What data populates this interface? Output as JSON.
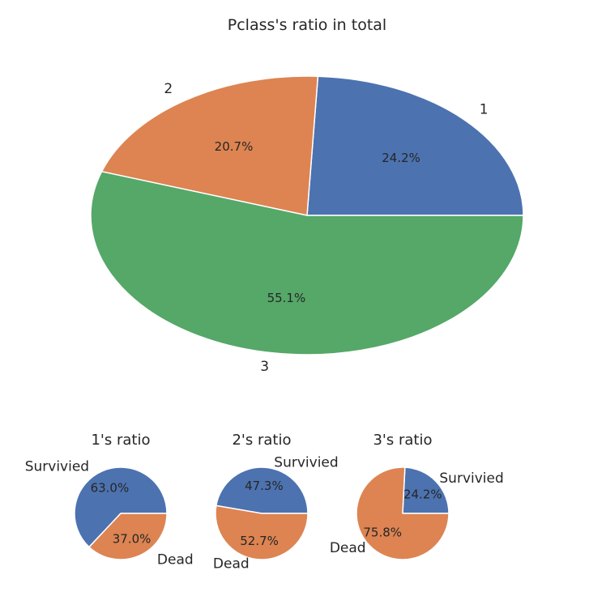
{
  "chart_data": [
    {
      "type": "pie",
      "title": "Pclass's ratio in total",
      "categories": [
        "1",
        "2",
        "3"
      ],
      "values": [
        24.2,
        20.7,
        55.1
      ],
      "labels": [
        "24.2%",
        "20.7%",
        "55.1%"
      ],
      "colors": [
        "#4c72b0",
        "#dd8452",
        "#55a868"
      ]
    },
    {
      "type": "pie",
      "title": "1's ratio",
      "categories": [
        "Survivied",
        "Dead"
      ],
      "values": [
        63.0,
        37.0
      ],
      "labels": [
        "63.0%",
        "37.0%"
      ],
      "colors": [
        "#4c72b0",
        "#dd8452"
      ]
    },
    {
      "type": "pie",
      "title": "2's ratio",
      "categories": [
        "Survivied",
        "Dead"
      ],
      "values": [
        47.3,
        52.7
      ],
      "labels": [
        "47.3%",
        "52.7%"
      ],
      "colors": [
        "#4c72b0",
        "#dd8452"
      ]
    },
    {
      "type": "pie",
      "title": "3's ratio",
      "categories": [
        "Survivied",
        "Dead"
      ],
      "values": [
        24.2,
        75.8
      ],
      "labels": [
        "24.2%",
        "75.8%"
      ],
      "colors": [
        "#4c72b0",
        "#dd8452"
      ]
    }
  ]
}
